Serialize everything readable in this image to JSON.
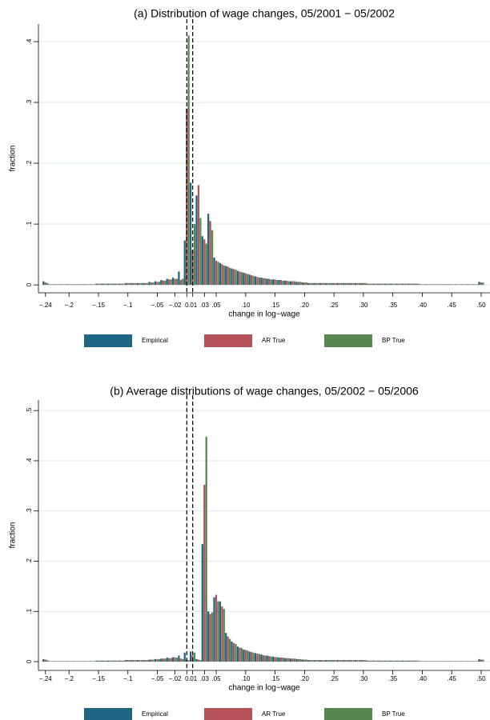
{
  "chart_data": [
    {
      "type": "bar",
      "title": "(a) Distribution of wage changes, 05/2001 − 05/2002",
      "xlabel": "change in log−wage",
      "ylabel": "fraction",
      "x": [
        -0.24,
        -0.23,
        -0.22,
        -0.21,
        -0.2,
        -0.19,
        -0.18,
        -0.17,
        -0.16,
        -0.15,
        -0.14,
        -0.13,
        -0.12,
        -0.11,
        -0.1,
        -0.09,
        -0.08,
        -0.07,
        -0.06,
        -0.05,
        -0.04,
        -0.03,
        -0.02,
        -0.01,
        0,
        0.01,
        0.02,
        0.03,
        0.04,
        0.05,
        0.06,
        0.07,
        0.08,
        0.09,
        0.1,
        0.11,
        0.12,
        0.13,
        0.14,
        0.15,
        0.16,
        0.17,
        0.18,
        0.19,
        0.2,
        0.21,
        0.22,
        0.23,
        0.24,
        0.25,
        0.26,
        0.27,
        0.28,
        0.29,
        0.3,
        0.31,
        0.32,
        0.33,
        0.34,
        0.35,
        0.36,
        0.37,
        0.38,
        0.39,
        0.4,
        0.41,
        0.42,
        0.43,
        0.44,
        0.45,
        0.46,
        0.47,
        0.48,
        0.49,
        0.5
      ],
      "series": [
        {
          "name": "Empirical",
          "color": "#1f6584",
          "values": [
            0.006,
            0.001,
            0.001,
            0.001,
            0.001,
            0.001,
            0.001,
            0.001,
            0.001,
            0.002,
            0.002,
            0.002,
            0.002,
            0.002,
            0.003,
            0.003,
            0.003,
            0.003,
            0.005,
            0.006,
            0.008,
            0.01,
            0.012,
            0.022,
            0.073,
            0.168,
            0.147,
            0.08,
            0.117,
            0.045,
            0.036,
            0.031,
            0.027,
            0.023,
            0.02,
            0.017,
            0.014,
            0.012,
            0.01,
            0.009,
            0.008,
            0.007,
            0.006,
            0.005,
            0.004,
            0.003,
            0.003,
            0.003,
            0.003,
            0.003,
            0.003,
            0.003,
            0.003,
            0.003,
            0.003,
            0.002,
            0.002,
            0.002,
            0.002,
            0.002,
            0.002,
            0.002,
            0.002,
            0.002,
            0.001,
            0.001,
            0.001,
            0.001,
            0.001,
            0.001,
            0.001,
            0.001,
            0.001,
            0.001,
            0.005
          ]
        },
        {
          "name": "AR True",
          "color": "#b5525a",
          "values": [
            0.004,
            0.001,
            0.001,
            0.001,
            0.001,
            0.001,
            0.001,
            0.001,
            0.001,
            0.002,
            0.002,
            0.002,
            0.002,
            0.002,
            0.003,
            0.003,
            0.003,
            0.003,
            0.004,
            0.005,
            0.007,
            0.009,
            0.01,
            0.008,
            0.29,
            0.057,
            0.164,
            0.075,
            0.105,
            0.04,
            0.034,
            0.03,
            0.026,
            0.022,
            0.019,
            0.016,
            0.013,
            0.011,
            0.01,
            0.009,
            0.008,
            0.007,
            0.006,
            0.005,
            0.004,
            0.003,
            0.003,
            0.003,
            0.003,
            0.003,
            0.003,
            0.003,
            0.003,
            0.003,
            0.003,
            0.002,
            0.002,
            0.002,
            0.002,
            0.002,
            0.002,
            0.002,
            0.002,
            0.002,
            0.001,
            0.001,
            0.001,
            0.001,
            0.001,
            0.001,
            0.001,
            0.001,
            0.001,
            0.001,
            0.004
          ]
        },
        {
          "name": "BP True",
          "color": "#56874f",
          "values": [
            0.003,
            0.001,
            0.001,
            0.001,
            0.001,
            0.001,
            0.001,
            0.001,
            0.001,
            0.002,
            0.002,
            0.002,
            0.002,
            0.002,
            0.003,
            0.003,
            0.003,
            0.003,
            0.004,
            0.005,
            0.007,
            0.009,
            0.01,
            0.01,
            0.41,
            0.1,
            0.11,
            0.068,
            0.09,
            0.038,
            0.032,
            0.028,
            0.025,
            0.021,
            0.018,
            0.015,
            0.012,
            0.011,
            0.009,
            0.008,
            0.007,
            0.006,
            0.006,
            0.005,
            0.004,
            0.003,
            0.003,
            0.003,
            0.003,
            0.003,
            0.003,
            0.003,
            0.003,
            0.003,
            0.003,
            0.002,
            0.002,
            0.002,
            0.002,
            0.002,
            0.002,
            0.002,
            0.002,
            0.002,
            0.001,
            0.001,
            0.001,
            0.001,
            0.001,
            0.001,
            0.001,
            0.001,
            0.001,
            0.001,
            0.004
          ]
        }
      ],
      "xlim": [
        -0.252,
        0.515
      ],
      "ylim": [
        -0.013,
        0.429
      ],
      "xticks": [
        {
          "value": -0.24,
          "label": "−.24"
        },
        {
          "value": -0.2,
          "label": "−.2"
        },
        {
          "value": -0.15,
          "label": "−.15"
        },
        {
          "value": -0.1,
          "label": "−.1"
        },
        {
          "value": -0.05,
          "label": "−.05"
        },
        {
          "value": -0.02,
          "label": "−.02"
        },
        0,
        {
          "value": 0.01,
          "label": ".01"
        },
        {
          "value": 0.03,
          "label": ".03"
        },
        {
          "value": 0.05,
          "label": ".05"
        },
        {
          "value": 0.1,
          "label": ".10"
        },
        {
          "value": 0.15,
          "label": ".15"
        },
        {
          "value": 0.2,
          "label": ".20"
        },
        {
          "value": 0.25,
          "label": ".25"
        },
        {
          "value": 0.3,
          "label": ".30"
        },
        {
          "value": 0.35,
          "label": ".35"
        },
        {
          "value": 0.4,
          "label": ".40"
        },
        {
          "value": 0.45,
          "label": ".45"
        },
        {
          "value": 0.5,
          "label": ".50"
        }
      ],
      "yticks": [
        0,
        {
          "value": 0.1,
          "label": ".1"
        },
        {
          "value": 0.2,
          "label": ".2"
        },
        {
          "value": 0.3,
          "label": ".3"
        },
        {
          "value": 0.4,
          "label": ".4"
        }
      ],
      "vlines": [
        0,
        0.01
      ],
      "grid": true,
      "legend": "bottom"
    },
    {
      "type": "bar",
      "title": "(b) Average distributions of wage changes, 05/2002 − 05/2006",
      "xlabel": "change in log−wage",
      "ylabel": "fraction",
      "x": [
        -0.24,
        -0.23,
        -0.22,
        -0.21,
        -0.2,
        -0.19,
        -0.18,
        -0.17,
        -0.16,
        -0.15,
        -0.14,
        -0.13,
        -0.12,
        -0.11,
        -0.1,
        -0.09,
        -0.08,
        -0.07,
        -0.06,
        -0.05,
        -0.04,
        -0.03,
        -0.02,
        -0.01,
        0,
        0.01,
        0.02,
        0.03,
        0.04,
        0.05,
        0.06,
        0.07,
        0.08,
        0.09,
        0.1,
        0.11,
        0.12,
        0.13,
        0.14,
        0.15,
        0.16,
        0.17,
        0.18,
        0.19,
        0.2,
        0.21,
        0.22,
        0.23,
        0.24,
        0.25,
        0.26,
        0.27,
        0.28,
        0.29,
        0.3,
        0.31,
        0.32,
        0.33,
        0.34,
        0.35,
        0.36,
        0.37,
        0.38,
        0.39,
        0.4,
        0.41,
        0.42,
        0.43,
        0.44,
        0.45,
        0.46,
        0.47,
        0.48,
        0.49,
        0.5
      ],
      "series": [
        {
          "name": "Empirical",
          "color": "#1f6584",
          "values": [
            0.005,
            0.001,
            0.001,
            0.001,
            0.001,
            0.001,
            0.001,
            0.001,
            0.001,
            0.002,
            0.002,
            0.002,
            0.002,
            0.002,
            0.003,
            0.003,
            0.003,
            0.003,
            0.004,
            0.005,
            0.006,
            0.008,
            0.009,
            0.012,
            0.018,
            0.02,
            0.005,
            0.234,
            0.1,
            0.128,
            0.12,
            0.057,
            0.04,
            0.03,
            0.024,
            0.02,
            0.017,
            0.014,
            0.012,
            0.01,
            0.008,
            0.007,
            0.006,
            0.005,
            0.004,
            0.003,
            0.003,
            0.003,
            0.003,
            0.003,
            0.003,
            0.003,
            0.003,
            0.003,
            0.003,
            0.002,
            0.002,
            0.002,
            0.002,
            0.002,
            0.002,
            0.002,
            0.002,
            0.002,
            0.001,
            0.001,
            0.001,
            0.001,
            0.001,
            0.001,
            0.001,
            0.001,
            0.001,
            0.001,
            0.005
          ]
        },
        {
          "name": "AR True",
          "color": "#b5525a",
          "values": [
            0.004,
            0.001,
            0.001,
            0.001,
            0.001,
            0.001,
            0.001,
            0.001,
            0.001,
            0.002,
            0.002,
            0.002,
            0.002,
            0.002,
            0.003,
            0.003,
            0.003,
            0.003,
            0.004,
            0.005,
            0.006,
            0.007,
            0.008,
            0.006,
            0.004,
            0.012,
            0.004,
            0.352,
            0.095,
            0.133,
            0.11,
            0.05,
            0.037,
            0.028,
            0.023,
            0.019,
            0.016,
            0.013,
            0.011,
            0.009,
            0.008,
            0.007,
            0.006,
            0.005,
            0.004,
            0.003,
            0.003,
            0.003,
            0.003,
            0.003,
            0.003,
            0.003,
            0.003,
            0.003,
            0.003,
            0.002,
            0.002,
            0.002,
            0.002,
            0.002,
            0.002,
            0.002,
            0.002,
            0.002,
            0.001,
            0.001,
            0.001,
            0.001,
            0.001,
            0.001,
            0.001,
            0.001,
            0.001,
            0.001,
            0.004
          ]
        },
        {
          "name": "BP True",
          "color": "#56874f",
          "values": [
            0.003,
            0.001,
            0.001,
            0.001,
            0.001,
            0.001,
            0.001,
            0.001,
            0.001,
            0.002,
            0.002,
            0.002,
            0.002,
            0.002,
            0.003,
            0.003,
            0.003,
            0.003,
            0.004,
            0.005,
            0.006,
            0.007,
            0.008,
            0.005,
            0.003,
            0.018,
            0.003,
            0.448,
            0.098,
            0.12,
            0.105,
            0.045,
            0.035,
            0.027,
            0.022,
            0.018,
            0.015,
            0.012,
            0.01,
            0.009,
            0.008,
            0.007,
            0.006,
            0.005,
            0.004,
            0.003,
            0.003,
            0.003,
            0.003,
            0.003,
            0.003,
            0.003,
            0.003,
            0.003,
            0.003,
            0.002,
            0.002,
            0.002,
            0.002,
            0.002,
            0.002,
            0.002,
            0.002,
            0.002,
            0.001,
            0.001,
            0.001,
            0.001,
            0.001,
            0.001,
            0.001,
            0.001,
            0.001,
            0.001,
            0.004
          ]
        }
      ],
      "xlim": [
        -0.252,
        0.515
      ],
      "ylim": [
        -0.0175,
        0.521
      ],
      "xticks": [
        {
          "value": -0.24,
          "label": "−.24"
        },
        {
          "value": -0.2,
          "label": "−.2"
        },
        {
          "value": -0.15,
          "label": "−.15"
        },
        {
          "value": -0.1,
          "label": "−.1"
        },
        {
          "value": -0.05,
          "label": "−.05"
        },
        {
          "value": -0.02,
          "label": "−.02"
        },
        0,
        {
          "value": 0.01,
          "label": ".01"
        },
        {
          "value": 0.03,
          "label": ".03"
        },
        {
          "value": 0.05,
          "label": ".05"
        },
        {
          "value": 0.1,
          "label": ".10"
        },
        {
          "value": 0.15,
          "label": ".15"
        },
        {
          "value": 0.2,
          "label": ".20"
        },
        {
          "value": 0.25,
          "label": ".25"
        },
        {
          "value": 0.3,
          "label": ".30"
        },
        {
          "value": 0.35,
          "label": ".35"
        },
        {
          "value": 0.4,
          "label": ".40"
        },
        {
          "value": 0.45,
          "label": ".45"
        },
        {
          "value": 0.5,
          "label": ".50"
        }
      ],
      "yticks": [
        0,
        {
          "value": 0.1,
          "label": ".1"
        },
        {
          "value": 0.2,
          "label": ".2"
        },
        {
          "value": 0.3,
          "label": ".3"
        },
        {
          "value": 0.4,
          "label": ".4"
        },
        {
          "value": 0.5,
          "label": ".5"
        }
      ],
      "vlines": [
        0,
        0.01
      ],
      "grid": true,
      "legend": "bottom"
    }
  ]
}
